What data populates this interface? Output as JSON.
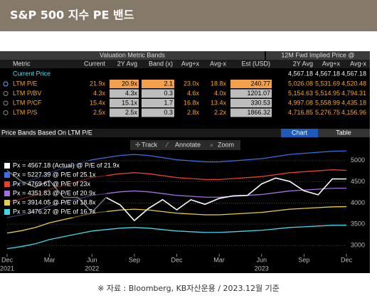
{
  "header": {
    "title": "S&P 500 지수 PE  밴드"
  },
  "table": {
    "group_headers": [
      "Valuation Metric Bands",
      "12M Fwd Implied Price @"
    ],
    "columns": [
      "Metric",
      "Current",
      "2Y Avg",
      "Band (x)",
      "Avg+x",
      "Avg-x",
      "Est (USD)",
      "2Y Avg",
      "Avg+x",
      "Avg-x"
    ],
    "current_price": {
      "label": "Current Price",
      "implied": [
        "4,567.18",
        "4,567.18",
        "4,567.18"
      ]
    },
    "rows": [
      {
        "label": "LTM P/E",
        "cells": [
          "21.9x",
          "20.9x",
          "2.1",
          "23.0x",
          "18.8x",
          "240.77",
          "5,026.08",
          "5,531.69",
          "4,520.48"
        ]
      },
      {
        "label": "LTM P/BV",
        "cells": [
          "4.3x",
          "4.3x",
          "0.3",
          "4.6x",
          "4.0x",
          "1201.07",
          "5,154.63",
          "5,514.95",
          "4,794.31"
        ]
      },
      {
        "label": "LTM P/CF",
        "cells": [
          "15.4x",
          "15.1x",
          "1.7",
          "16.8x",
          "13.4x",
          "330.53",
          "4,997.08",
          "5,558.99",
          "4,435.18"
        ]
      },
      {
        "label": "LTM P/S",
        "cells": [
          "2.5x",
          "2.5x",
          "0.3",
          "2.8x",
          "2.2x",
          "1866.32",
          "4,716.85",
          "5,276.75",
          "4,156.96"
        ]
      }
    ]
  },
  "screen": {
    "tabs": [
      "Chart",
      "Table"
    ],
    "tools": [
      "Track",
      "Annotate",
      "Zoom"
    ]
  },
  "chart_data": {
    "type": "line",
    "title": "Price Bands Based On LTM P/E",
    "x": [
      "2021-12",
      "2022-01",
      "2022-02",
      "2022-03",
      "2022-04",
      "2022-05",
      "2022-06",
      "2022-07",
      "2022-08",
      "2022-09",
      "2022-10",
      "2022-11",
      "2022-12",
      "2023-01",
      "2023-02",
      "2023-03",
      "2023-04",
      "2023-05",
      "2023-06",
      "2023-07",
      "2023-08",
      "2023-09",
      "2023-10",
      "2023-11",
      "2023-12"
    ],
    "series": [
      {
        "name": "Px = 4567.18 (Actual) @ P/E of 21.9x",
        "color": "#ffffff",
        "values": [
          4766,
          4516,
          4374,
          4530,
          4132,
          4132,
          3785,
          4130,
          3955,
          3586,
          3872,
          4080,
          3840,
          4077,
          3970,
          4109,
          4169,
          4180,
          4450,
          4589,
          4508,
          4288,
          4194,
          4568,
          4567.18
        ]
      },
      {
        "name": "Px = 5227.39 @ P/E of 25.1x",
        "color": "#3a6fe0",
        "values": [
          4393,
          4468,
          4568,
          4719,
          4819,
          4920,
          5020,
          5070,
          5120,
          5146,
          5120,
          5070,
          5020,
          4995,
          4970,
          4970,
          4995,
          5020,
          5045,
          5095,
          5146,
          5171,
          5196,
          5221,
          5227.39
        ]
      },
      {
        "name": "Px = 4769.61 @ P/E of 23x",
        "color": "#e8402a",
        "values": [
          4025,
          4094,
          4186,
          4324,
          4416,
          4508,
          4600,
          4646,
          4692,
          4715,
          4692,
          4646,
          4600,
          4577,
          4554,
          4554,
          4577,
          4600,
          4623,
          4669,
          4715,
          4738,
          4761,
          4784,
          4769.61
        ]
      },
      {
        "name": "Px = 4351.83 @ P/E of 20.9x",
        "color": "#a070e0",
        "values": [
          3658,
          3720,
          3804,
          3929,
          4013,
          4096,
          4180,
          4222,
          4264,
          4285,
          4264,
          4222,
          4180,
          4159,
          4138,
          4138,
          4159,
          4180,
          4201,
          4243,
          4285,
          4305,
          4326,
          4347,
          4351.83
        ]
      },
      {
        "name": "Px = 3914.05 @ P/E of 18.8x",
        "color": "#e8d040",
        "values": [
          3290,
          3346,
          3422,
          3534,
          3610,
          3685,
          3760,
          3798,
          3835,
          3854,
          3835,
          3798,
          3760,
          3741,
          3722,
          3722,
          3741,
          3760,
          3779,
          3816,
          3854,
          3873,
          3892,
          3910,
          3914.05
        ]
      },
      {
        "name": "Px = 3476.27 @ P/E of 16.7x",
        "color": "#40d8e8",
        "values": [
          2923,
          2973,
          3039,
          3140,
          3206,
          3273,
          3340,
          3373,
          3407,
          3424,
          3407,
          3373,
          3340,
          3323,
          3307,
          3307,
          3323,
          3340,
          3357,
          3390,
          3424,
          3440,
          3457,
          3474,
          3476.27
        ]
      }
    ],
    "ylim": [
      2800,
      5500
    ],
    "yticks": [
      3000,
      3500,
      4000,
      4500,
      5000
    ],
    "grid": true,
    "xticks": [
      {
        "value": "2021-12",
        "label": "Dec"
      },
      {
        "value": "2022-03",
        "label": "Mar"
      },
      {
        "value": "2022-06",
        "label": "Jun"
      },
      {
        "value": "2022-09",
        "label": "Sep"
      },
      {
        "value": "2022-12",
        "label": "Dec"
      },
      {
        "value": "2023-03",
        "label": "Mar"
      },
      {
        "value": "2023-06",
        "label": "Jun"
      },
      {
        "value": "2023-09",
        "label": "Sep"
      },
      {
        "value": "2023-12",
        "label": "Dec"
      }
    ],
    "xyears": [
      {
        "value": "2021-12",
        "label": "2021"
      },
      {
        "value": "2022-06",
        "label": "2022"
      },
      {
        "value": "2023-06",
        "label": "2023"
      }
    ],
    "legend": "upper left"
  },
  "footer": {
    "source": "※ 자료 : Bloomberg, KB자산운용 / 2023.12월 기준"
  }
}
